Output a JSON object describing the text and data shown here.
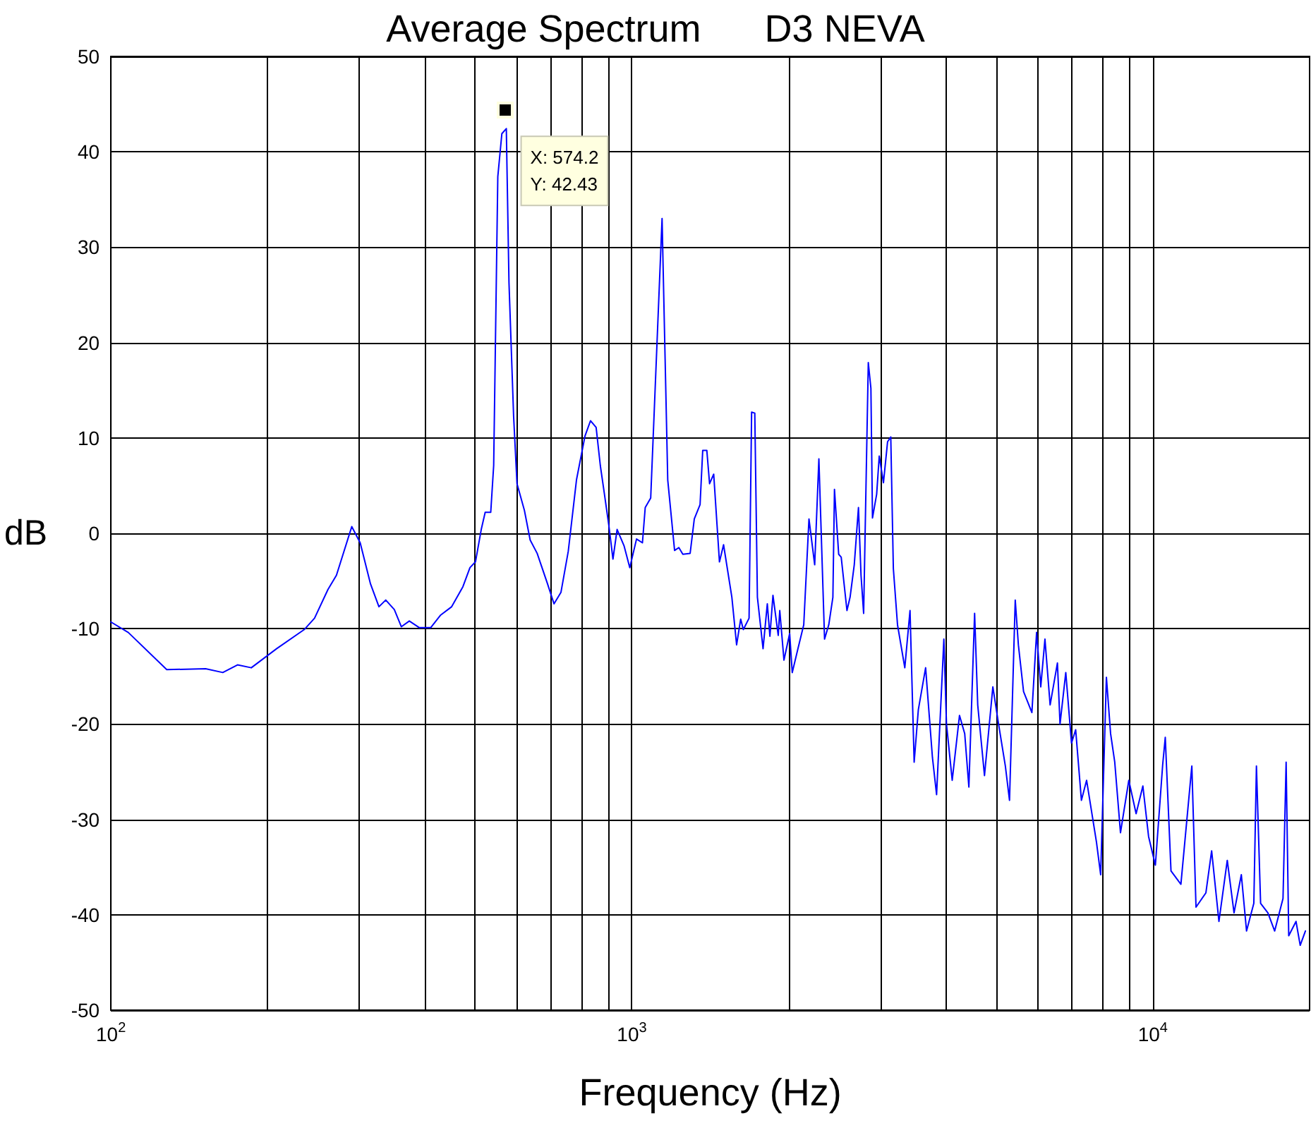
{
  "chart_data": {
    "type": "line",
    "title": "Average Spectrum      D3 NEVA",
    "xlabel": "Frequency (Hz)",
    "ylabel": "dB",
    "log": "x",
    "grid": true,
    "marker": "none",
    "line_style": "solid",
    "xlim": [
      100,
      20000
    ],
    "xticks": [
      {
        "value": 100,
        "label": "10$^{2}$"
      },
      {
        "value": 200,
        "label": null
      },
      {
        "value": 300,
        "label": null
      },
      {
        "value": 400,
        "label": null
      },
      {
        "value": 500,
        "label": null
      },
      {
        "value": 600,
        "label": null
      },
      {
        "value": 700,
        "label": null
      },
      {
        "value": 800,
        "label": null
      },
      {
        "value": 900,
        "label": null
      },
      {
        "value": 1000,
        "label": "10$^{3}$"
      },
      {
        "value": 2000,
        "label": null
      },
      {
        "value": 3000,
        "label": null
      },
      {
        "value": 4000,
        "label": null
      },
      {
        "value": 5000,
        "label": null
      },
      {
        "value": 6000,
        "label": null
      },
      {
        "value": 7000,
        "label": null
      },
      {
        "value": 8000,
        "label": null
      },
      {
        "value": 9000,
        "label": null
      },
      {
        "value": 10000,
        "label": "10$^{4}$"
      }
    ],
    "ylim": [
      -50,
      50
    ],
    "yticks": [
      -50,
      -40,
      -30,
      -20,
      -10,
      0,
      10,
      20,
      30,
      40,
      50
    ],
    "annotations": [
      {
        "text": "X: 574.2\nY: 42.43",
        "x": 574.2,
        "y": 42.43
      }
    ],
    "series": [
      {
        "color": "#0000ff",
        "x": [
          100,
          108,
          128,
          152,
          164,
          175,
          186,
          208,
          235,
          246,
          261,
          271,
          290,
          301,
          315,
          327,
          337,
          350,
          361,
          374,
          391,
          411,
          429,
          451,
          474,
          489,
          501,
          514,
          523,
          536,
          543,
          553,
          563,
          574.2,
          581,
          593,
          602,
          622,
          638,
          658,
          688,
          709,
          731,
          755,
          783,
          813,
          833,
          854,
          870,
          886,
          903,
          920,
          937,
          966,
          991,
          1021,
          1048,
          1061,
          1087,
          1143,
          1172,
          1208,
          1231,
          1253,
          1294,
          1318,
          1352,
          1368,
          1393,
          1410,
          1436,
          1473,
          1500,
          1556,
          1589,
          1618,
          1637,
          1679,
          1698,
          1722,
          1742,
          1786,
          1820,
          1841,
          1866,
          1910,
          1923,
          1959,
          2009,
          2032,
          2084,
          2138,
          2188,
          2244,
          2286,
          2344,
          2388,
          2432,
          2449,
          2495,
          2523,
          2588,
          2624,
          2673,
          2723,
          2754,
          2786,
          2844,
          2877,
          2897,
          2951,
          2985,
          3041,
          3097,
          3141,
          3177,
          3236,
          3342,
          3420,
          3483,
          3548,
          3664,
          3776,
          3846,
          3972,
          4018,
          4121,
          4256,
          4355,
          4436,
          4550,
          4613,
          4753,
          4932,
          5058,
          5212,
          5309,
          5445,
          5521,
          5649,
          5861,
          5984,
          6095,
          6209,
          6353,
          6561,
          6637,
          6808,
          6982,
          7112,
          7295,
          7464,
          7798,
          7943,
          8147,
          8299,
          8453,
          8670,
          8995,
          9290,
          9572,
          9817,
          10116,
          10447,
          10568,
          10839,
          11324,
          11885,
          12106,
          12647,
          12972,
          13397,
          13900,
          14322,
          14791,
          15136,
          15631,
          15812,
          16106,
          16634,
          17140,
          17783,
          18030,
          18239,
          18836,
          19187,
          19634
        ],
        "values": [
          -9.3,
          -10.4,
          -14.3,
          -14.2,
          -14.6,
          -13.8,
          -14.1,
          -12.1,
          -10.1,
          -8.9,
          -5.9,
          -4.4,
          0.7,
          -1.0,
          -5.3,
          -7.7,
          -7.0,
          -8.0,
          -9.8,
          -9.2,
          -9.9,
          -9.9,
          -8.6,
          -7.7,
          -5.6,
          -3.6,
          -3.0,
          0.4,
          2.2,
          2.2,
          7.1,
          37.4,
          41.9,
          42.43,
          26.3,
          12.3,
          5.2,
          2.4,
          -0.7,
          -2.1,
          -5.2,
          -7.4,
          -6.2,
          -1.9,
          5.6,
          10.2,
          11.8,
          11.1,
          7.1,
          4.1,
          0.9,
          -2.7,
          0.4,
          -1.3,
          -3.6,
          -0.6,
          -1.0,
          2.7,
          3.7,
          33.0,
          5.6,
          -1.8,
          -1.5,
          -2.2,
          -2.1,
          1.5,
          3.0,
          8.7,
          8.7,
          5.2,
          6.2,
          -3.0,
          -1.2,
          -6.7,
          -11.7,
          -9.0,
          -10.1,
          -8.9,
          12.7,
          12.6,
          -6.7,
          -12.1,
          -7.4,
          -10.8,
          -6.5,
          -10.7,
          -8.1,
          -13.3,
          -10.5,
          -14.6,
          -12.1,
          -9.6,
          1.5,
          -3.3,
          7.8,
          -11.1,
          -9.6,
          -6.7,
          4.6,
          -2.2,
          -2.5,
          -8.1,
          -6.7,
          -3.3,
          2.7,
          -4.4,
          -8.4,
          17.9,
          15.2,
          1.6,
          4.1,
          8.1,
          5.3,
          9.6,
          10.1,
          -3.7,
          -9.6,
          -14.1,
          -8.1,
          -24.0,
          -18.5,
          -14.1,
          -23.5,
          -27.4,
          -11.1,
          -20.0,
          -25.9,
          -19.1,
          -21.0,
          -26.6,
          -8.4,
          -18.0,
          -25.4,
          -16.1,
          -20.0,
          -24.4,
          -28.0,
          -7.0,
          -11.7,
          -16.6,
          -18.8,
          -10.4,
          -16.1,
          -11.1,
          -18.0,
          -13.6,
          -20.0,
          -14.6,
          -22.0,
          -20.6,
          -28.0,
          -25.9,
          -32.4,
          -35.8,
          -15.1,
          -21.0,
          -24.0,
          -31.4,
          -25.9,
          -29.4,
          -26.5,
          -31.8,
          -34.8,
          -24.3,
          -21.4,
          -35.4,
          -36.8,
          -24.4,
          -39.2,
          -37.7,
          -33.3,
          -40.7,
          -34.3,
          -39.8,
          -35.8,
          -41.7,
          -38.8,
          -24.4,
          -38.8,
          -39.8,
          -41.7,
          -38.3,
          -24.0,
          -42.2,
          -40.7,
          -43.2,
          -41.7
        ]
      }
    ]
  }
}
